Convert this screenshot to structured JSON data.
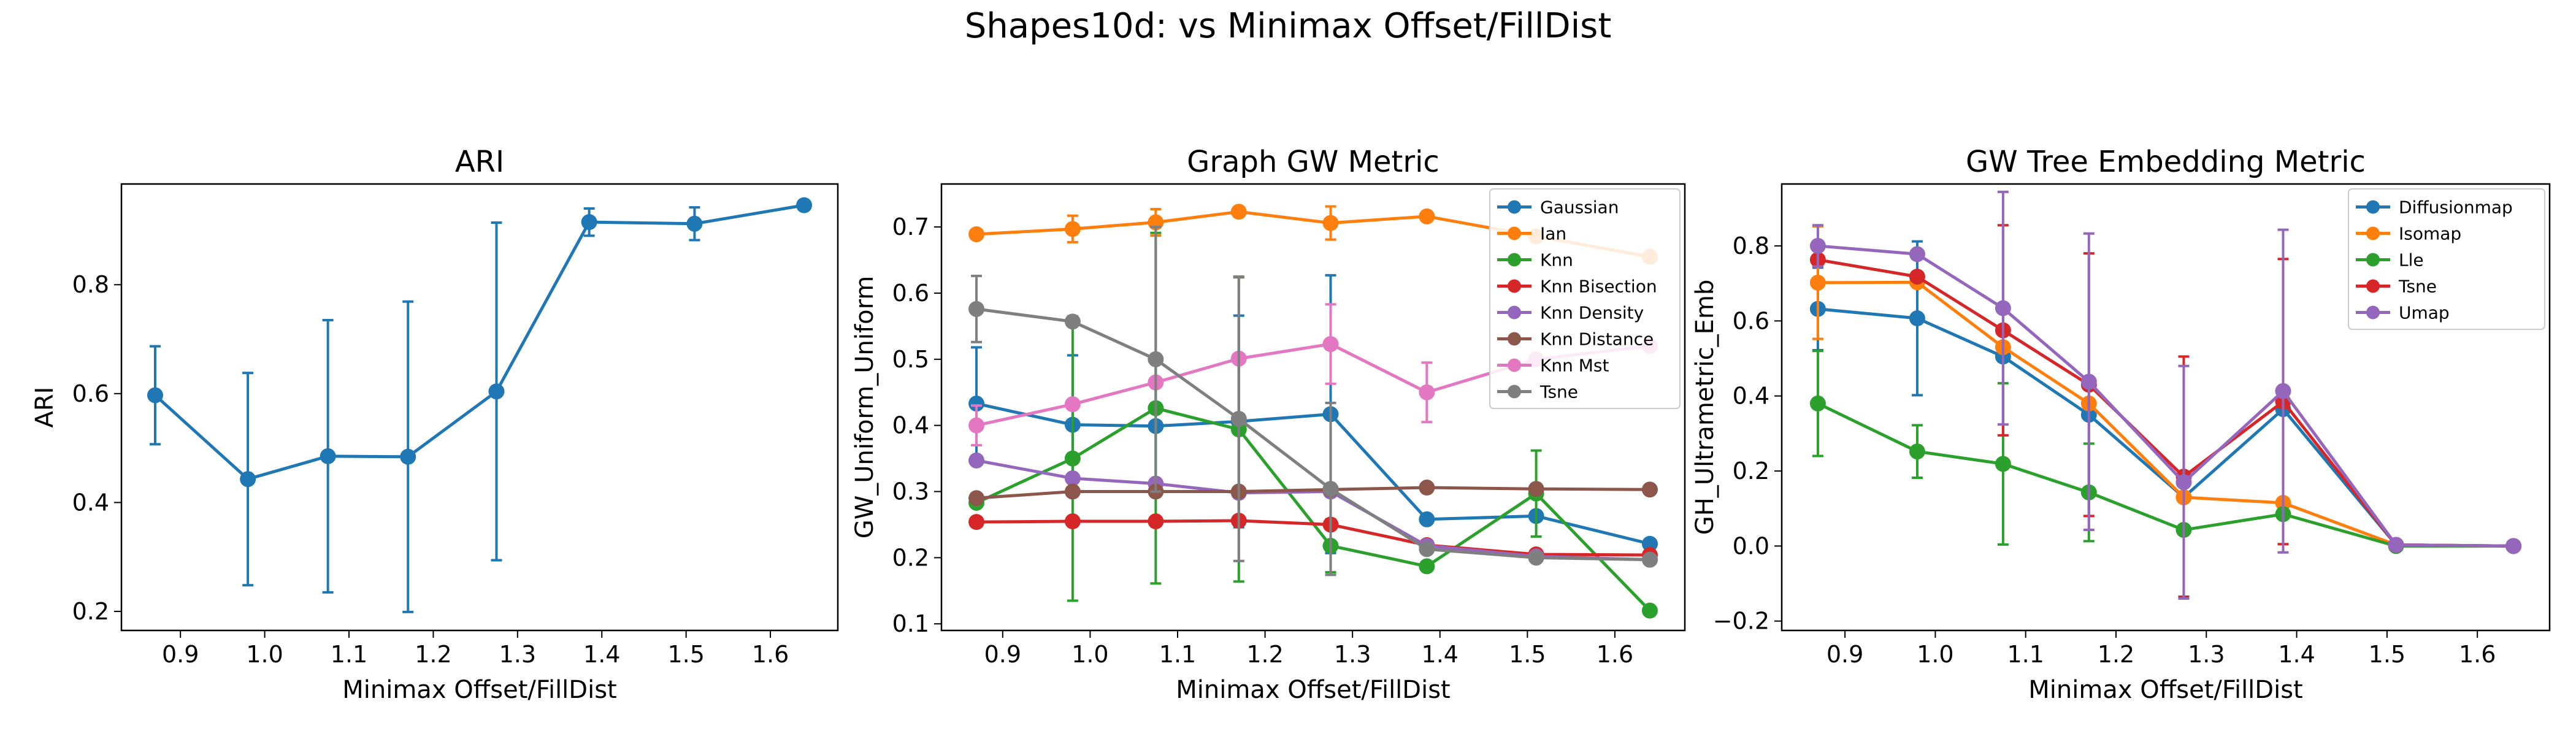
{
  "suptitle": "Shapes10d: vs Minimax Offset/FillDist",
  "chart_data": [
    {
      "type": "line",
      "title": "ARI",
      "xlabel": "Minimax Offset/FillDist",
      "ylabel": "ARI",
      "xlim": [
        0.83,
        1.68
      ],
      "ylim": [
        0.165,
        0.985
      ],
      "xticks": [
        "0.9",
        "1.0",
        "1.1",
        "1.2",
        "1.3",
        "1.4",
        "1.5",
        "1.6"
      ],
      "xtick_values": [
        0.9,
        1.0,
        1.1,
        1.2,
        1.3,
        1.4,
        1.5,
        1.6
      ],
      "yticks": [
        "0.2",
        "0.4",
        "0.6",
        "0.8"
      ],
      "ytick_values": [
        0.2,
        0.4,
        0.6,
        0.8
      ],
      "x": [
        0.87,
        0.98,
        1.075,
        1.17,
        1.275,
        1.385,
        1.51,
        1.64
      ],
      "legend": null,
      "series": [
        {
          "color": "#1f77b4",
          "values": [
            0.597,
            0.443,
            0.485,
            0.484,
            0.604,
            0.915,
            0.912,
            0.946
          ],
          "err": [
            0.09,
            0.195,
            0.25,
            0.285,
            0.31,
            0.025,
            0.03,
            0.0
          ]
        }
      ]
    },
    {
      "type": "line",
      "title": "Graph GW Metric",
      "xlabel": "Minimax Offset/FillDist",
      "ylabel": "GW_Uniform_Uniform",
      "xlim": [
        0.83,
        1.68
      ],
      "ylim": [
        0.09,
        0.765
      ],
      "xticks": [
        "0.9",
        "1.0",
        "1.1",
        "1.2",
        "1.3",
        "1.4",
        "1.5",
        "1.6"
      ],
      "xtick_values": [
        0.9,
        1.0,
        1.1,
        1.2,
        1.3,
        1.4,
        1.5,
        1.6
      ],
      "yticks": [
        "0.1",
        "0.2",
        "0.3",
        "0.4",
        "0.5",
        "0.6",
        "0.7"
      ],
      "ytick_values": [
        0.1,
        0.2,
        0.3,
        0.4,
        0.5,
        0.6,
        0.7
      ],
      "x": [
        0.87,
        0.98,
        1.075,
        1.17,
        1.275,
        1.385,
        1.51,
        1.64
      ],
      "legend": "top-right",
      "series": [
        {
          "name": "Gaussian",
          "color": "#1f77b4",
          "values": [
            0.433,
            0.401,
            0.399,
            0.406,
            0.417,
            0.258,
            0.263,
            0.221
          ],
          "err": [
            0.085,
            0.105,
            0.1,
            0.16,
            0.21,
            0.0,
            0.0,
            0.0
          ]
        },
        {
          "name": "Ian",
          "color": "#ff7f0e",
          "values": [
            0.689,
            0.697,
            0.707,
            0.723,
            0.706,
            0.716,
            0.686,
            0.655
          ],
          "err": [
            0.0,
            0.02,
            0.02,
            0.0,
            0.025,
            0.0,
            0.0,
            0.0
          ]
        },
        {
          "name": "Knn",
          "color": "#2ca02c",
          "values": [
            0.283,
            0.35,
            0.426,
            0.394,
            0.218,
            0.187,
            0.297,
            0.12
          ],
          "err": [
            0.0,
            0.215,
            0.265,
            0.23,
            0.04,
            0.0,
            0.065,
            0.0
          ]
        },
        {
          "name": "Knn Bisection",
          "color": "#d62728",
          "values": [
            0.254,
            0.255,
            0.255,
            0.256,
            0.25,
            0.219,
            0.205,
            0.204
          ],
          "err": [
            0.0,
            0.0,
            0.0,
            0.0,
            0.0,
            0.0,
            0.0,
            0.0
          ]
        },
        {
          "name": "Knn Density",
          "color": "#9467bd",
          "values": [
            0.347,
            0.32,
            0.312,
            0.298,
            0.3,
            0.218,
            0.202,
            0.197
          ],
          "err": [
            0.0,
            0.0,
            0.0,
            0.0,
            0.0,
            0.0,
            0.0,
            0.0
          ]
        },
        {
          "name": "Knn Distance",
          "color": "#8c564b",
          "values": [
            0.29,
            0.3,
            0.3,
            0.3,
            0.303,
            0.306,
            0.304,
            0.303
          ],
          "err": [
            0.0,
            0.0,
            0.0,
            0.0,
            0.0,
            0.0,
            0.0,
            0.0
          ]
        },
        {
          "name": "Knn Mst",
          "color": "#e377c2",
          "values": [
            0.4,
            0.432,
            0.465,
            0.501,
            0.523,
            0.45,
            0.5,
            0.52
          ],
          "err": [
            0.03,
            0.0,
            0.0,
            0.0,
            0.06,
            0.045,
            0.0,
            0.0
          ]
        },
        {
          "name": "Tsne",
          "color": "#7f7f7f",
          "values": [
            0.576,
            0.557,
            0.5,
            0.41,
            0.304,
            0.213,
            0.2,
            0.197
          ],
          "err": [
            0.05,
            0.0,
            0.2,
            0.215,
            0.13,
            0.0,
            0.0,
            0.0
          ]
        }
      ]
    },
    {
      "type": "line",
      "title": "GW Tree Embedding Metric",
      "xlabel": "Minimax Offset/FillDist",
      "ylabel": "GH_Ultrametric_Emb",
      "xlim": [
        0.83,
        1.68
      ],
      "ylim": [
        -0.225,
        0.965
      ],
      "xticks": [
        "0.9",
        "1.0",
        "1.1",
        "1.2",
        "1.3",
        "1.4",
        "1.5",
        "1.6"
      ],
      "xtick_values": [
        0.9,
        1.0,
        1.1,
        1.2,
        1.3,
        1.4,
        1.5,
        1.6
      ],
      "yticks": [
        "−0.2",
        "0.0",
        "0.2",
        "0.4",
        "0.6",
        "0.8"
      ],
      "ytick_values": [
        -0.2,
        0.0,
        0.2,
        0.4,
        0.6,
        0.8
      ],
      "x": [
        0.87,
        0.98,
        1.075,
        1.17,
        1.275,
        1.385,
        1.51,
        1.64
      ],
      "legend": "top-right",
      "series": [
        {
          "name": "Diffusionmap",
          "color": "#1f77b4",
          "values": [
            0.632,
            0.607,
            0.505,
            0.35,
            0.13,
            0.365,
            0.003,
            0.0
          ],
          "err": [
            0.11,
            0.205,
            0.0,
            0.0,
            0.0,
            0.0,
            0.0,
            0.0
          ]
        },
        {
          "name": "Isomap",
          "color": "#ff7f0e",
          "values": [
            0.702,
            0.703,
            0.53,
            0.38,
            0.13,
            0.115,
            0.003,
            0.0
          ],
          "err": [
            0.15,
            0.0,
            0.0,
            0.0,
            0.0,
            0.0,
            0.0,
            0.0
          ]
        },
        {
          "name": "Lle",
          "color": "#2ca02c",
          "values": [
            0.38,
            0.252,
            0.219,
            0.143,
            0.043,
            0.085,
            0.0,
            0.0
          ],
          "err": [
            0.14,
            0.07,
            0.215,
            0.13,
            0.0,
            0.0,
            0.0,
            0.0
          ]
        },
        {
          "name": "Tsne",
          "color": "#d62728",
          "values": [
            0.763,
            0.718,
            0.575,
            0.43,
            0.185,
            0.385,
            0.003,
            0.0
          ],
          "err": [
            0.0,
            0.0,
            0.28,
            0.35,
            0.32,
            0.38,
            0.0,
            0.0
          ]
        },
        {
          "name": "Umap",
          "color": "#9467bd",
          "values": [
            0.8,
            0.778,
            0.634,
            0.438,
            0.17,
            0.413,
            0.003,
            0.0
          ],
          "err": [
            0.055,
            0.0,
            0.31,
            0.395,
            0.31,
            0.43,
            0.0,
            0.0
          ]
        }
      ]
    }
  ]
}
